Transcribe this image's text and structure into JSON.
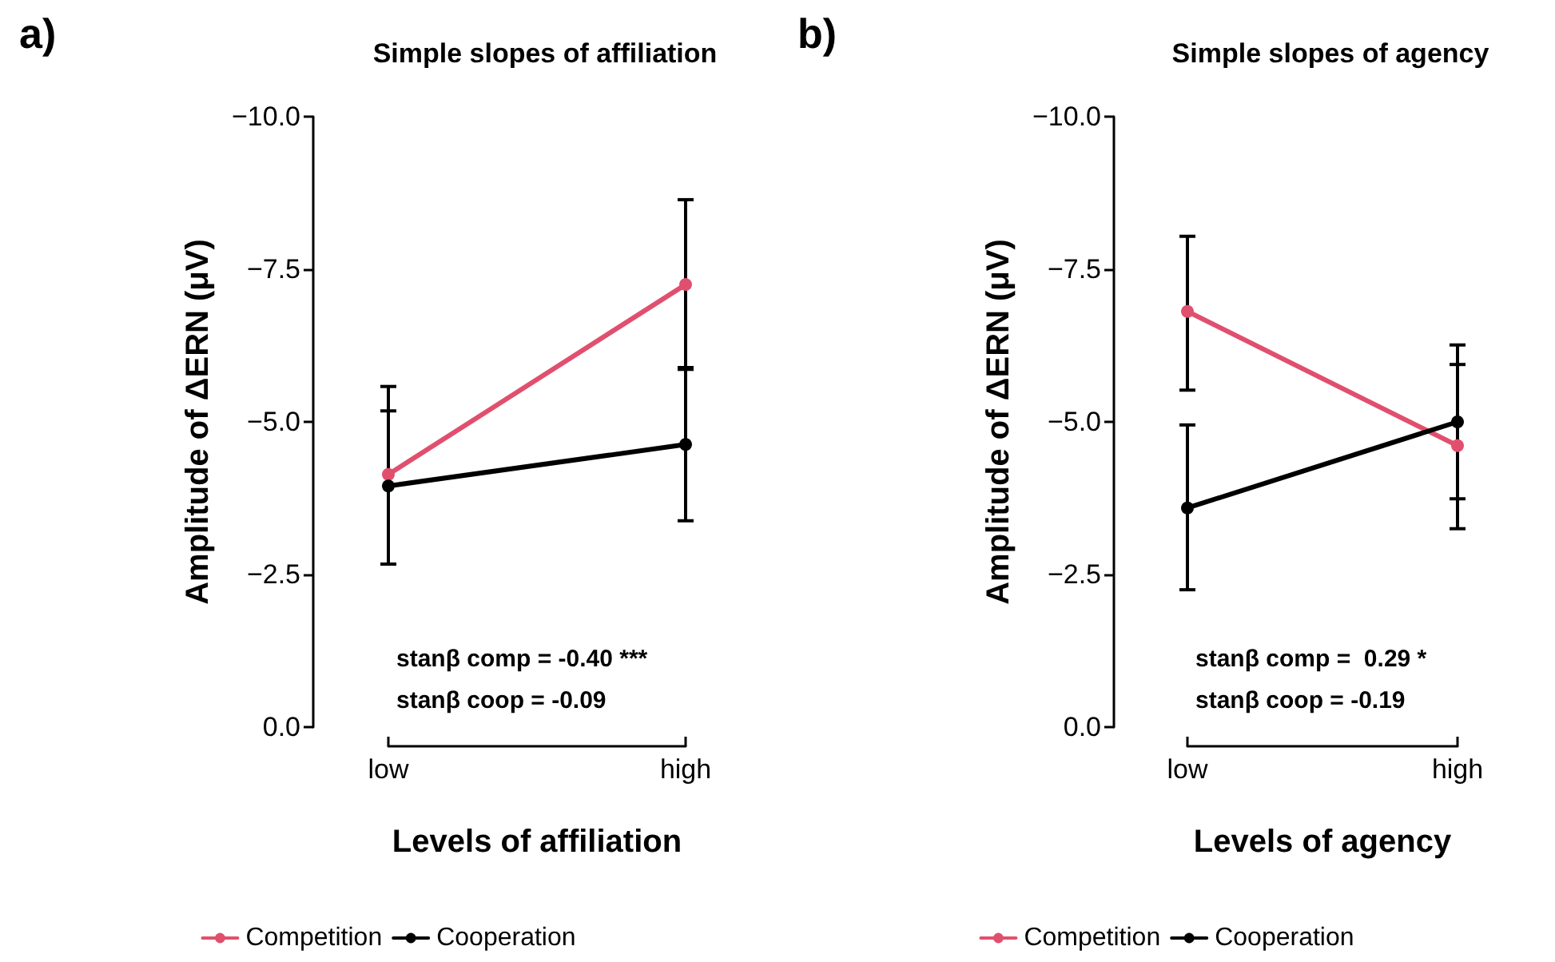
{
  "chart_data": [
    {
      "type": "line",
      "title": "Simple slopes of affiliation",
      "xlabel": "Levels of affiliation",
      "ylabel": "Amplitude of ΔERN (μV)",
      "categories": [
        "low",
        "high"
      ],
      "series": [
        {
          "name": "Competition",
          "color": "#e0506e",
          "values": [
            -4.14,
            -7.25
          ],
          "errors": [
            [
              -5.58,
              -2.67
            ],
            [
              -8.64,
              -5.86
            ]
          ]
        },
        {
          "name": "Cooperation",
          "color": "#000000",
          "values": [
            -3.95,
            -4.63
          ],
          "errors": [
            [
              -5.18,
              -2.67
            ],
            [
              -5.89,
              -3.38
            ]
          ]
        }
      ],
      "ylim": [
        0,
        -10
      ],
      "yticks": [
        {
          "value": -10,
          "label": "−10.0"
        },
        {
          "value": -7.5,
          "label": "−7.5"
        },
        {
          "value": -5,
          "label": "−5.0"
        },
        {
          "value": -2.5,
          "label": "−2.5"
        },
        {
          "value": 0,
          "label": "0.0"
        }
      ],
      "annotations": [
        "a)",
        "stanβ comp = -0.40 ***",
        "stanβ coop = -0.09"
      ],
      "legend": "bottom",
      "marker": "circle",
      "grid": false
    },
    {
      "type": "line",
      "title": "Simple slopes of agency",
      "xlabel": "Levels of agency",
      "ylabel": "Amplitude of ΔERN (μV)",
      "categories": [
        "low",
        "high"
      ],
      "series": [
        {
          "name": "Competition",
          "color": "#e0506e",
          "values": [
            -6.81,
            -4.61
          ],
          "errors": [
            [
              -8.04,
              -5.52
            ],
            [
              -5.94,
              -3.25
            ]
          ]
        },
        {
          "name": "Cooperation",
          "color": "#000000",
          "values": [
            -3.59,
            -5.0
          ],
          "errors": [
            [
              -4.95,
              -2.25
            ],
            [
              -6.26,
              -3.74
            ]
          ]
        }
      ],
      "ylim": [
        0,
        -10
      ],
      "yticks": [
        {
          "value": -10,
          "label": "−10.0"
        },
        {
          "value": -7.5,
          "label": "−7.5"
        },
        {
          "value": -5,
          "label": "−5.0"
        },
        {
          "value": -2.5,
          "label": "−2.5"
        },
        {
          "value": 0,
          "label": "0.0"
        }
      ],
      "annotations": [
        "b)",
        "stanβ comp =  0.29 *",
        "stanβ coop = -0.19"
      ],
      "legend": "bottom",
      "marker": "circle",
      "grid": false
    }
  ]
}
